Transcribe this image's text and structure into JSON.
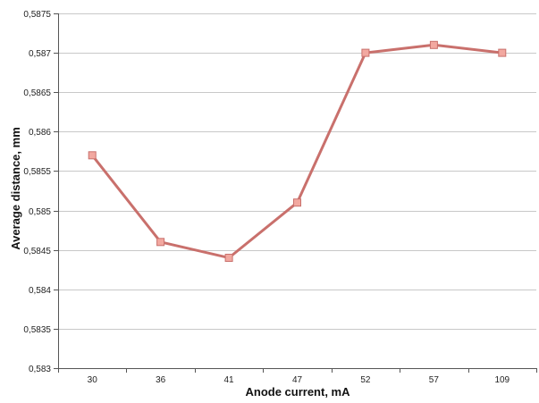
{
  "chart_data": {
    "type": "line",
    "categories": [
      "30",
      "36",
      "41",
      "47",
      "52",
      "57",
      "109"
    ],
    "series": [
      {
        "values": [
          0.5857,
          0.5846,
          0.5844,
          0.5851,
          0.587,
          0.5871,
          0.587
        ],
        "color": "#c9706c",
        "marker_color": "#f2a8a0"
      }
    ],
    "xlabel": "Anode current, mA",
    "ylabel": "Average distance, mm",
    "ylim": [
      0.583,
      0.5875
    ],
    "yticks": [
      0.583,
      0.5835,
      0.584,
      0.5845,
      0.585,
      0.5855,
      0.586,
      0.5865,
      0.587,
      0.5875
    ],
    "ytick_labels": [
      "0,583",
      "0,5835",
      "0,584",
      "0,5845",
      "0,585",
      "0,5855",
      "0,586",
      "0,5865",
      "0,587",
      "0,5875"
    ],
    "grid": true,
    "legend": "none"
  }
}
